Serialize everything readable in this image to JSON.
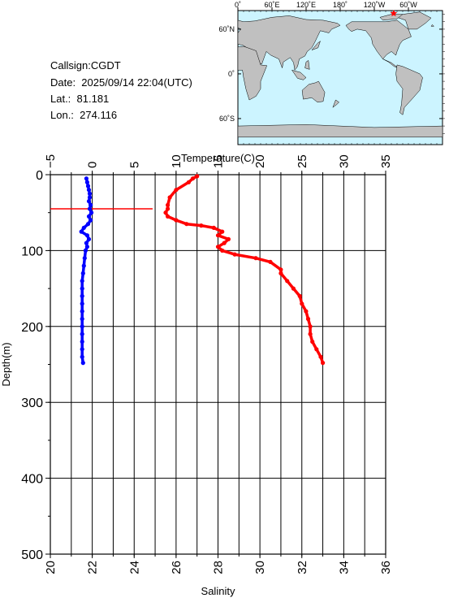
{
  "info": {
    "callsign": "Callsign:CGDT",
    "date": "Date:  2025/09/14 22:04(UTC)",
    "lat": "Lat.:  81.181",
    "lon": "Lon.:  274.116"
  },
  "map": {
    "top_labels": [
      "0˚",
      "60˚E",
      "120˚E",
      "180˚",
      "120˚W",
      "60˚W"
    ],
    "left_labels": [
      "60˚N",
      "0˚",
      "60˚S"
    ],
    "ocean_color": "#ccf4ff",
    "land_color": "#c0c0c0",
    "marker_color": "#ff0000",
    "marker_lat": 81.181,
    "marker_lon": 274.116
  },
  "chart_data": {
    "type": "line",
    "y_axis_label": "Depth(m)",
    "y_range": [
      0,
      500
    ],
    "y_ticks": [
      "0",
      "100",
      "200",
      "300",
      "400",
      "500"
    ],
    "temperature_axis": {
      "label": "Temperature(C)",
      "range": [
        -5,
        35
      ],
      "ticks": [
        "−5",
        "0",
        "5",
        "10",
        "15",
        "20",
        "25",
        "30",
        "35"
      ]
    },
    "salinity_axis": {
      "label": "Salinity",
      "range": [
        20,
        36
      ],
      "ticks": [
        "20",
        "22",
        "24",
        "26",
        "28",
        "30",
        "32",
        "34",
        "36"
      ]
    },
    "grid": true,
    "series": [
      {
        "quantity": "temperature",
        "color": "#0000ff",
        "points": [
          [
            -0.7,
            5
          ],
          [
            -0.6,
            10
          ],
          [
            -0.5,
            15
          ],
          [
            -0.4,
            20
          ],
          [
            -0.3,
            25
          ],
          [
            -0.3,
            30
          ],
          [
            -0.4,
            35
          ],
          [
            -0.2,
            40
          ],
          [
            -0.3,
            45
          ],
          [
            -0.1,
            50
          ],
          [
            -0.4,
            55
          ],
          [
            -0.2,
            60
          ],
          [
            -0.5,
            65
          ],
          [
            -1.0,
            70
          ],
          [
            -1.3,
            75
          ],
          [
            -0.6,
            80
          ],
          [
            -0.4,
            85
          ],
          [
            -0.7,
            90
          ],
          [
            -0.6,
            95
          ],
          [
            -0.8,
            100
          ],
          [
            -0.9,
            110
          ],
          [
            -1.0,
            120
          ],
          [
            -1.1,
            130
          ],
          [
            -1.2,
            140
          ],
          [
            -1.2,
            150
          ],
          [
            -1.2,
            160
          ],
          [
            -1.2,
            170
          ],
          [
            -1.2,
            180
          ],
          [
            -1.2,
            190
          ],
          [
            -1.2,
            200
          ],
          [
            -1.2,
            210
          ],
          [
            -1.2,
            220
          ],
          [
            -1.2,
            230
          ],
          [
            -1.2,
            240
          ],
          [
            -1.1,
            248
          ]
        ]
      },
      {
        "quantity": "salinity",
        "color": "#ff0000",
        "points": [
          [
            27.0,
            2
          ],
          [
            26.8,
            5
          ],
          [
            26.6,
            10
          ],
          [
            26.0,
            20
          ],
          [
            25.7,
            30
          ],
          [
            25.6,
            40
          ],
          [
            25.6,
            45
          ],
          [
            25.5,
            50
          ],
          [
            25.6,
            55
          ],
          [
            26.0,
            60
          ],
          [
            26.5,
            65
          ],
          [
            27.2,
            67
          ],
          [
            27.8,
            70
          ],
          [
            28.2,
            75
          ],
          [
            28.0,
            80
          ],
          [
            28.5,
            85
          ],
          [
            28.3,
            90
          ],
          [
            28.0,
            95
          ],
          [
            28.2,
            100
          ],
          [
            28.8,
            105
          ],
          [
            29.8,
            110
          ],
          [
            30.5,
            115
          ],
          [
            31.0,
            125
          ],
          [
            31.0,
            130
          ],
          [
            31.3,
            140
          ],
          [
            31.6,
            150
          ],
          [
            31.9,
            160
          ],
          [
            32.0,
            170
          ],
          [
            32.2,
            180
          ],
          [
            32.3,
            190
          ],
          [
            32.4,
            200
          ],
          [
            32.4,
            210
          ],
          [
            32.5,
            220
          ],
          [
            32.7,
            230
          ],
          [
            32.9,
            240
          ],
          [
            33.0,
            248
          ]
        ]
      }
    ],
    "marker_line": {
      "depth": 45,
      "color": "#ff0000"
    }
  }
}
